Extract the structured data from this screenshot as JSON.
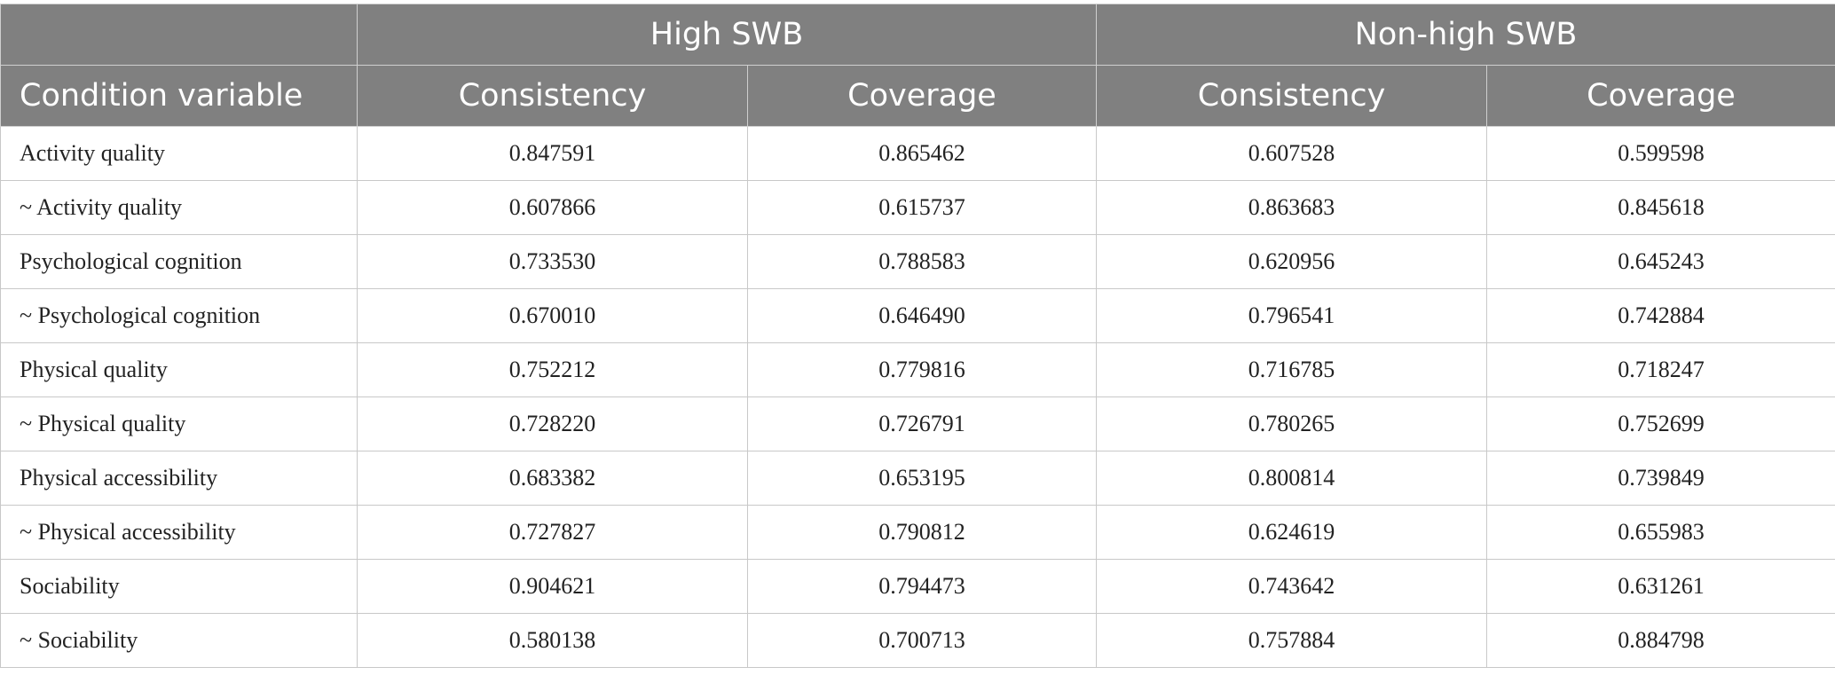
{
  "table": {
    "header": {
      "groups": [
        "",
        "High SWB",
        "Non-high SWB"
      ],
      "columns": [
        "Condition variable",
        "Consistency",
        "Coverage",
        "Consistency",
        "Coverage"
      ]
    },
    "rows": [
      [
        "Activity quality",
        "0.847591",
        "0.865462",
        "0.607528",
        "0.599598"
      ],
      [
        "~ Activity quality",
        "0.607866",
        "0.615737",
        "0.863683",
        "0.845618"
      ],
      [
        "Psychological cognition",
        "0.733530",
        "0.788583",
        "0.620956",
        "0.645243"
      ],
      [
        "~ Psychological cognition",
        "0.670010",
        "0.646490",
        "0.796541",
        "0.742884"
      ],
      [
        "Physical quality",
        "0.752212",
        "0.779816",
        "0.716785",
        "0.718247"
      ],
      [
        "~ Physical quality",
        "0.728220",
        "0.726791",
        "0.780265",
        "0.752699"
      ],
      [
        "Physical accessibility",
        "0.683382",
        "0.653195",
        "0.800814",
        "0.739849"
      ],
      [
        "~ Physical accessibility",
        "0.727827",
        "0.790812",
        "0.624619",
        "0.655983"
      ],
      [
        "Sociability",
        "0.904621",
        "0.794473",
        "0.743642",
        "0.631261"
      ],
      [
        "~ Sociability",
        "0.580138",
        "0.700713",
        "0.757884",
        "0.884798"
      ]
    ]
  },
  "colors": {
    "header_bg": "#808080",
    "header_text": "#ffffff",
    "grid": "#c8c8c8"
  }
}
